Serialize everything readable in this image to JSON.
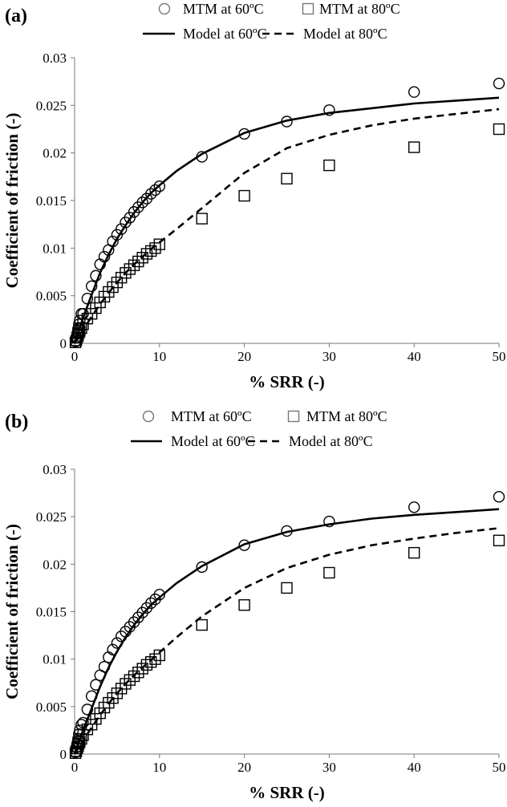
{
  "chart_data": [
    {
      "panel_label": "(a)",
      "type": "scatter",
      "xlabel": "% SRR (-)",
      "ylabel": "Coefficient of friction (-)",
      "xlim": [
        0,
        50
      ],
      "ylim": [
        0,
        0.03
      ],
      "xticks": [
        0,
        10,
        20,
        30,
        40,
        50
      ],
      "yticks": [
        0,
        0.005,
        0.01,
        0.015,
        0.02,
        0.025,
        0.03
      ],
      "ytick_labels": [
        "0",
        "0.005",
        "0.01",
        "0.015",
        "0.02",
        "0.025",
        "0.03"
      ],
      "grid": false,
      "legend_placement": "top",
      "series": [
        {
          "name": "MTM at 60ºC",
          "type": "scatter",
          "marker": "circle",
          "x": [
            0.1,
            0.2,
            0.3,
            0.4,
            0.5,
            0.6,
            0.8,
            1.0,
            1.5,
            2.0,
            2.5,
            3.0,
            3.5,
            4.0,
            4.5,
            5.0,
            5.5,
            6.0,
            6.5,
            7.0,
            7.5,
            8.0,
            8.5,
            9.0,
            9.5,
            10.0,
            15,
            20,
            25,
            30,
            40,
            50
          ],
          "y": [
            0.0002,
            0.0006,
            0.001,
            0.0015,
            0.002,
            0.0024,
            0.0031,
            0.0031,
            0.0047,
            0.006,
            0.0071,
            0.0083,
            0.0091,
            0.0098,
            0.0107,
            0.0114,
            0.012,
            0.0127,
            0.0132,
            0.0138,
            0.0143,
            0.0148,
            0.0152,
            0.0157,
            0.0161,
            0.0165,
            0.0196,
            0.022,
            0.0233,
            0.0245,
            0.0264,
            0.0273
          ]
        },
        {
          "name": "MTM at 80ºC",
          "type": "scatter",
          "marker": "square",
          "x": [
            0.1,
            0.2,
            0.3,
            0.4,
            0.5,
            0.6,
            0.8,
            1.0,
            1.5,
            2.0,
            2.5,
            3.0,
            3.5,
            4.0,
            4.5,
            5.0,
            5.5,
            6.0,
            6.5,
            7.0,
            7.5,
            8.0,
            8.5,
            9.0,
            9.5,
            10.0,
            15,
            20,
            25,
            30,
            40,
            50
          ],
          "y": [
            0.0001,
            0.0003,
            0.0006,
            0.0008,
            0.0011,
            0.0013,
            0.0016,
            0.002,
            0.0026,
            0.0031,
            0.0037,
            0.0043,
            0.0049,
            0.0054,
            0.0059,
            0.0064,
            0.0069,
            0.0074,
            0.0078,
            0.0082,
            0.0086,
            0.009,
            0.0094,
            0.0097,
            0.01,
            0.0104,
            0.0131,
            0.0155,
            0.0173,
            0.0187,
            0.0206,
            0.0225
          ]
        },
        {
          "name": "Model at 60ºC",
          "type": "line",
          "style": "solid",
          "x": [
            0,
            1,
            2,
            3,
            4,
            5,
            6,
            7,
            8,
            9,
            10,
            12,
            15,
            20,
            25,
            30,
            35,
            40,
            45,
            50
          ],
          "y": [
            0,
            0.0027,
            0.0051,
            0.0074,
            0.0093,
            0.011,
            0.0124,
            0.0137,
            0.0148,
            0.0158,
            0.0166,
            0.0181,
            0.0199,
            0.0221,
            0.0234,
            0.0242,
            0.0247,
            0.0252,
            0.0255,
            0.0258
          ]
        },
        {
          "name": "Model at 80ºC",
          "type": "line",
          "style": "dashed",
          "x": [
            0,
            1,
            2,
            3,
            4,
            5,
            6,
            7,
            8,
            9,
            10,
            12,
            15,
            20,
            25,
            30,
            35,
            40,
            45,
            50
          ],
          "y": [
            0,
            0.0014,
            0.0028,
            0.0041,
            0.0053,
            0.0064,
            0.0074,
            0.0083,
            0.0091,
            0.0099,
            0.0106,
            0.012,
            0.0142,
            0.0179,
            0.0205,
            0.0219,
            0.0229,
            0.0236,
            0.0241,
            0.0246
          ]
        }
      ]
    },
    {
      "panel_label": "(b)",
      "type": "scatter",
      "xlabel": "% SRR (-)",
      "ylabel": "Coefficient of friction (-)",
      "xlim": [
        0,
        50
      ],
      "ylim": [
        0,
        0.03
      ],
      "xticks": [
        0,
        10,
        20,
        30,
        40,
        50
      ],
      "yticks": [
        0,
        0.005,
        0.01,
        0.015,
        0.02,
        0.025,
        0.03
      ],
      "ytick_labels": [
        "0",
        "0.005",
        "0.01",
        "0.015",
        "0.02",
        "0.025",
        "0.03"
      ],
      "grid": false,
      "legend_placement": "top",
      "series": [
        {
          "name": "MTM at 60ºC",
          "type": "scatter",
          "marker": "circle",
          "x": [
            0.1,
            0.2,
            0.3,
            0.4,
            0.5,
            0.6,
            0.8,
            1.0,
            1.5,
            2.0,
            2.5,
            3.0,
            3.5,
            4.0,
            4.5,
            5.0,
            5.5,
            6.0,
            6.5,
            7.0,
            7.5,
            8.0,
            8.5,
            9.0,
            9.5,
            10.0,
            15,
            20,
            25,
            30,
            40,
            50
          ],
          "y": [
            0.0002,
            0.0007,
            0.0011,
            0.0016,
            0.0021,
            0.0025,
            0.0031,
            0.0033,
            0.0047,
            0.0061,
            0.0073,
            0.0083,
            0.0092,
            0.0102,
            0.011,
            0.0117,
            0.0124,
            0.0129,
            0.0134,
            0.0139,
            0.0144,
            0.0149,
            0.0154,
            0.0159,
            0.0163,
            0.0168,
            0.0197,
            0.022,
            0.0235,
            0.0245,
            0.026,
            0.0271
          ]
        },
        {
          "name": "MTM at 80ºC",
          "type": "scatter",
          "marker": "square",
          "x": [
            0.1,
            0.2,
            0.3,
            0.4,
            0.5,
            0.6,
            0.8,
            1.0,
            1.5,
            2.0,
            2.5,
            3.0,
            3.5,
            4.0,
            4.5,
            5.0,
            5.5,
            6.0,
            6.5,
            7.0,
            7.5,
            8.0,
            8.5,
            9.0,
            9.5,
            10.0,
            15,
            20,
            25,
            30,
            40,
            50
          ],
          "y": [
            0.0001,
            0.0003,
            0.0006,
            0.0008,
            0.0011,
            0.0013,
            0.0016,
            0.002,
            0.0026,
            0.0031,
            0.0037,
            0.0043,
            0.0049,
            0.0054,
            0.0059,
            0.0064,
            0.0069,
            0.0074,
            0.0078,
            0.0082,
            0.0086,
            0.009,
            0.0094,
            0.0097,
            0.01,
            0.0104,
            0.0136,
            0.0157,
            0.0175,
            0.0191,
            0.0212,
            0.0225
          ]
        },
        {
          "name": "Model at 60ºC",
          "type": "line",
          "style": "solid",
          "x": [
            0,
            1,
            2,
            3,
            4,
            5,
            6,
            7,
            8,
            9,
            10,
            12,
            15,
            20,
            25,
            30,
            35,
            40,
            45,
            50
          ],
          "y": [
            0,
            0.0025,
            0.0048,
            0.0071,
            0.0091,
            0.0108,
            0.0123,
            0.0136,
            0.0147,
            0.0157,
            0.0165,
            0.018,
            0.0198,
            0.0221,
            0.0234,
            0.0242,
            0.0248,
            0.0252,
            0.0255,
            0.0258
          ]
        },
        {
          "name": "Model at 80ºC",
          "type": "line",
          "style": "dashed",
          "x": [
            0,
            1,
            2,
            3,
            4,
            5,
            6,
            7,
            8,
            9,
            10,
            12,
            15,
            20,
            25,
            30,
            35,
            40,
            45,
            50
          ],
          "y": [
            0,
            0.0014,
            0.0028,
            0.0041,
            0.0053,
            0.0064,
            0.0074,
            0.0083,
            0.0091,
            0.0099,
            0.0107,
            0.0123,
            0.0145,
            0.0175,
            0.0196,
            0.021,
            0.022,
            0.0227,
            0.0233,
            0.0238
          ]
        }
      ]
    }
  ]
}
